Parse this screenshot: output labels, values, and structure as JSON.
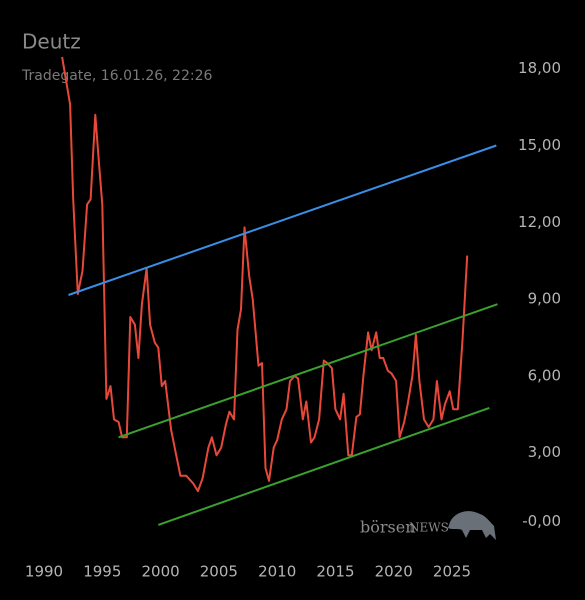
{
  "chart_data": {
    "type": "line",
    "title": "Deutz",
    "subtitle": "Tradegate, 16.01.26, 22:26",
    "watermark": [
      "börsen",
      "NEWS"
    ],
    "xlim": [
      1988,
      2030
    ],
    "xticks": [
      1990,
      1995,
      2000,
      2005,
      2010,
      2015,
      2020,
      2025
    ],
    "ylim": [
      -1,
      19
    ],
    "yticks": [
      {
        "value": 0,
        "label": "-0,00"
      },
      {
        "value": 3,
        "label": "3,00"
      },
      {
        "value": 6,
        "label": "6,00"
      },
      {
        "value": 9,
        "label": "9,00"
      },
      {
        "value": 12,
        "label": "12,00"
      },
      {
        "value": 15,
        "label": "15,00"
      },
      {
        "value": 18,
        "label": "18,00"
      }
    ],
    "series": [
      {
        "color": "#e8483a",
        "x": [
          1991.55,
          1992.24,
          1992.5,
          1992.9,
          1993.3,
          1993.7,
          1994.0,
          1994.4,
          1994.7,
          1995.0,
          1995.35,
          1995.7,
          1996.0,
          1996.4,
          1996.7,
          1997.1,
          1997.4,
          1997.8,
          1998.1,
          1998.4,
          1998.8,
          1999.1,
          1999.5,
          1999.8,
          2000.1,
          2000.4,
          2000.9,
          2001.3,
          2001.7,
          2002.2,
          2002.8,
          2003.2,
          2003.6,
          2004.1,
          2004.4,
          2004.8,
          2005.2,
          2005.6,
          2005.9,
          2006.3,
          2006.6,
          2006.9,
          2007.2,
          2007.6,
          2007.9,
          2008.4,
          2008.7,
          2009.0,
          2009.3,
          2009.7,
          2010.0,
          2010.4,
          2010.8,
          2011.1,
          2011.5,
          2011.8,
          2012.2,
          2012.5,
          2012.9,
          2013.2,
          2013.6,
          2014.0,
          2014.3,
          2014.7,
          2015.0,
          2015.4,
          2015.7,
          2016.1,
          2016.4,
          2016.8,
          2017.1,
          2017.4,
          2017.8,
          2018.1,
          2018.5,
          2018.8,
          2019.1,
          2019.5,
          2019.8,
          2020.2,
          2020.5,
          2020.9,
          2021.2,
          2021.6,
          2021.9,
          2022.2,
          2022.6,
          2023.0,
          2023.4,
          2023.7,
          2024.1,
          2024.4,
          2024.8,
          2025.1,
          2025.5,
          2025.9,
          2026.3
        ],
        "values": [
          18.46,
          16.6,
          12.9,
          9.2,
          10.1,
          12.7,
          12.9,
          16.2,
          14.4,
          12.7,
          5.1,
          5.6,
          4.3,
          4.2,
          3.6,
          3.6,
          8.3,
          8.0,
          6.7,
          8.8,
          10.2,
          8.0,
          7.3,
          7.1,
          5.6,
          5.8,
          3.9,
          3.0,
          2.1,
          2.1,
          1.8,
          1.5,
          2.0,
          3.2,
          3.6,
          2.9,
          3.2,
          4.1,
          4.6,
          4.3,
          7.8,
          8.6,
          11.8,
          9.9,
          9.0,
          6.4,
          6.5,
          2.4,
          1.9,
          3.2,
          3.5,
          4.3,
          4.7,
          5.8,
          6.0,
          5.9,
          4.3,
          5.0,
          3.4,
          3.6,
          4.3,
          6.6,
          6.5,
          6.3,
          4.7,
          4.3,
          5.3,
          2.9,
          2.9,
          4.4,
          4.5,
          6.0,
          7.7,
          7.0,
          7.7,
          6.7,
          6.7,
          6.2,
          6.1,
          5.8,
          3.6,
          4.2,
          4.9,
          6.0,
          7.6,
          5.8,
          4.3,
          4.0,
          4.3,
          5.8,
          4.3,
          4.9,
          5.4,
          4.7,
          4.7,
          7.4,
          10.7
        ]
      },
      {
        "color": "#3a8ee6",
        "x": [
          1992.1,
          2028.8
        ],
        "values": [
          9.16,
          15.0
        ]
      },
      {
        "color": "#3aa02e",
        "x": [
          1996.4,
          2028.9
        ],
        "values": [
          3.6,
          8.8
        ]
      },
      {
        "color": "#3aa02e",
        "x": [
          1999.8,
          2028.2
        ],
        "values": [
          0.18,
          4.75
        ]
      }
    ]
  }
}
